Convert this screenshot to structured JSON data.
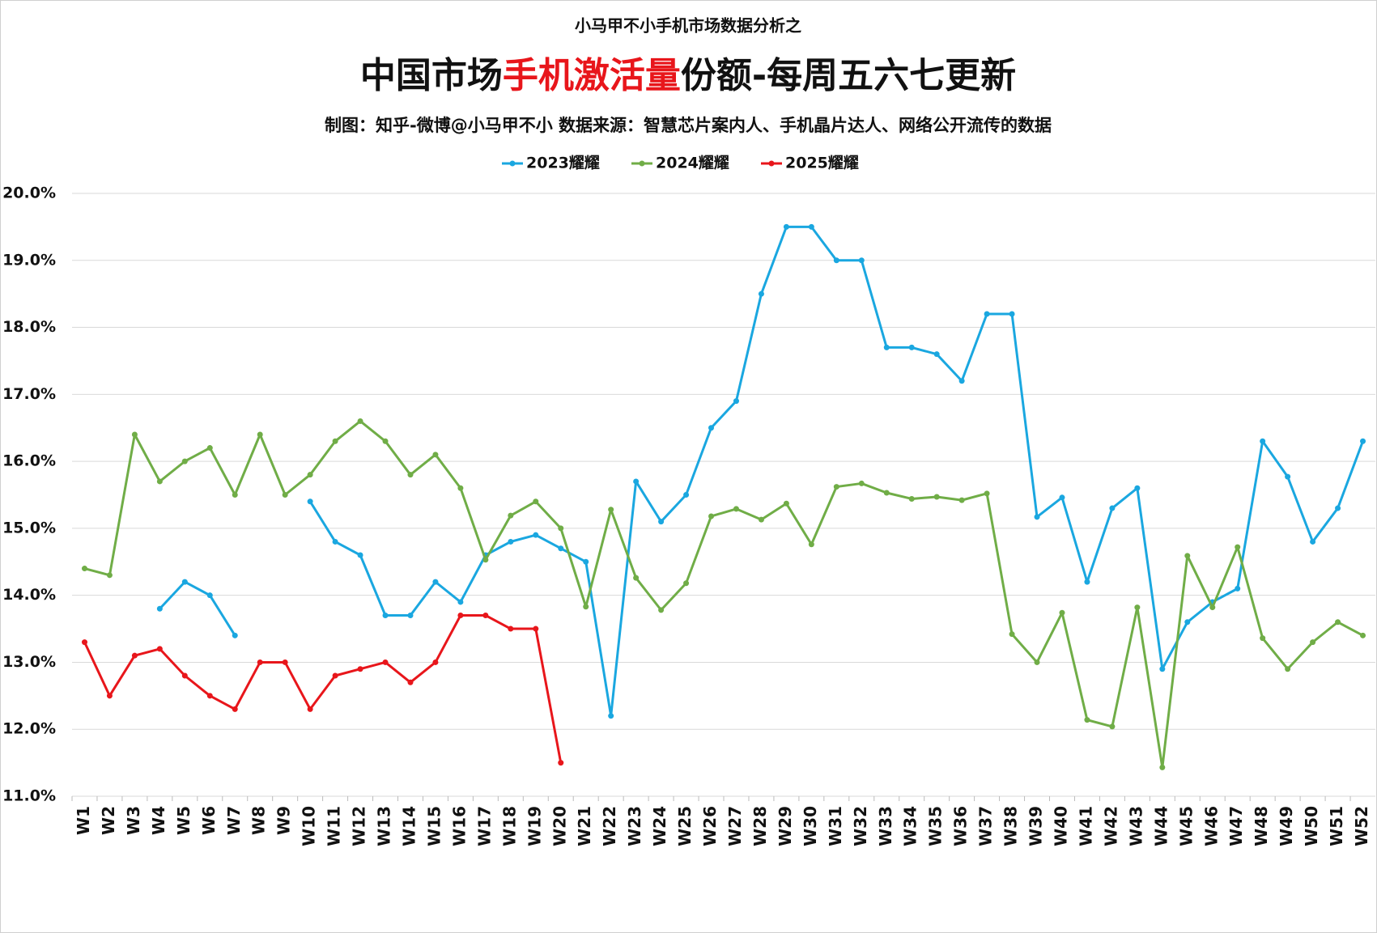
{
  "chart_data": {
    "type": "line",
    "subtitle": "小马甲不小手机市场数据分析之",
    "title_parts": [
      "中国市场",
      "手机激活量",
      "份额-每周五六七更新"
    ],
    "source": "制图：知乎-微博@小马甲不小  数据来源：智慧芯片案内人、手机晶片达人、网络公开流传的数据",
    "categories": [
      "W1",
      "W2",
      "W3",
      "W4",
      "W5",
      "W6",
      "W7",
      "W8",
      "W9",
      "W10",
      "W11",
      "W12",
      "W13",
      "W14",
      "W15",
      "W16",
      "W17",
      "W18",
      "W19",
      "W20",
      "W21",
      "W22",
      "W23",
      "W24",
      "W25",
      "W26",
      "W27",
      "W28",
      "W29",
      "W30",
      "W31",
      "W32",
      "W33",
      "W34",
      "W35",
      "W36",
      "W37",
      "W38",
      "W39",
      "W40",
      "W41",
      "W42",
      "W43",
      "W44",
      "W45",
      "W46",
      "W47",
      "W48",
      "W49",
      "W50",
      "W51",
      "W52"
    ],
    "series": [
      {
        "name": "2023耀耀",
        "color": "#1aa7e0",
        "values": [
          null,
          null,
          null,
          13.8,
          14.2,
          14.0,
          13.4,
          null,
          null,
          15.4,
          14.8,
          14.6,
          13.7,
          13.7,
          14.2,
          13.9,
          14.6,
          14.8,
          14.9,
          14.7,
          14.5,
          12.2,
          15.7,
          15.1,
          15.5,
          16.5,
          16.9,
          18.5,
          19.5,
          19.5,
          19.0,
          19.0,
          17.7,
          17.7,
          17.6,
          17.2,
          18.2,
          18.2,
          15.17,
          15.46,
          14.2,
          15.3,
          15.6,
          12.9,
          13.6,
          13.9,
          14.1,
          16.3,
          15.77,
          14.8,
          15.3,
          16.3
        ]
      },
      {
        "name": "2024耀耀",
        "color": "#70ad47",
        "values": [
          14.4,
          14.3,
          16.4,
          15.7,
          16.0,
          16.2,
          15.5,
          16.4,
          15.5,
          15.8,
          16.3,
          16.6,
          16.3,
          15.8,
          16.1,
          15.6,
          14.53,
          15.19,
          15.4,
          15.0,
          13.83,
          15.28,
          14.26,
          13.78,
          14.18,
          15.18,
          15.29,
          15.13,
          15.37,
          14.76,
          15.62,
          15.67,
          15.53,
          15.44,
          15.47,
          15.42,
          15.52,
          13.42,
          13.0,
          13.74,
          12.14,
          12.04,
          13.82,
          11.43,
          14.59,
          13.82,
          14.72,
          13.36,
          12.9,
          13.3,
          13.6,
          13.4
        ]
      },
      {
        "name": "2025耀耀",
        "color": "#e8161b",
        "values": [
          13.3,
          12.5,
          13.1,
          13.2,
          12.8,
          12.5,
          12.3,
          13.0,
          13.0,
          12.3,
          12.8,
          12.9,
          13.0,
          12.7,
          13.0,
          13.7,
          13.7,
          13.5,
          13.5,
          11.5,
          null,
          null,
          null,
          null,
          null,
          null,
          null,
          null,
          null,
          null,
          null,
          null,
          null,
          null,
          null,
          null,
          null,
          null,
          null,
          null,
          null,
          null,
          null,
          null,
          null,
          null,
          null,
          null,
          null,
          null,
          null,
          null
        ]
      }
    ],
    "ylim": [
      11,
      20
    ],
    "yticks": [
      {
        "value": 11,
        "label": "11.0%"
      },
      {
        "value": 12,
        "label": "12.0%"
      },
      {
        "value": 13,
        "label": "13.0%"
      },
      {
        "value": 14,
        "label": "14.0%"
      },
      {
        "value": 15,
        "label": "15.0%"
      },
      {
        "value": 16,
        "label": "16.0%"
      },
      {
        "value": 17,
        "label": "17.0%"
      },
      {
        "value": 18,
        "label": "18.0%"
      },
      {
        "value": 19,
        "label": "19.0%"
      },
      {
        "value": 20,
        "label": "20.0%"
      }
    ],
    "grid": true,
    "legend": "top"
  }
}
